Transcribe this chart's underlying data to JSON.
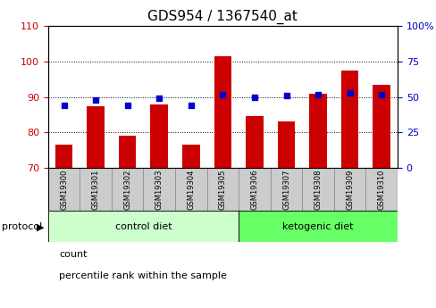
{
  "title": "GDS954 / 1367540_at",
  "samples": [
    "GSM19300",
    "GSM19301",
    "GSM19302",
    "GSM19303",
    "GSM19304",
    "GSM19305",
    "GSM19306",
    "GSM19307",
    "GSM19308",
    "GSM19309",
    "GSM19310"
  ],
  "counts": [
    76.5,
    87.5,
    79.0,
    88.0,
    76.5,
    101.5,
    84.5,
    83.0,
    91.0,
    97.5,
    93.5
  ],
  "percentile_ranks": [
    44,
    48,
    44,
    49,
    44,
    52,
    50,
    51,
    52,
    53,
    52
  ],
  "ylim_left": [
    70,
    110
  ],
  "ylim_right": [
    0,
    100
  ],
  "yticks_left": [
    70,
    80,
    90,
    100,
    110
  ],
  "yticks_right": [
    0,
    25,
    50,
    75,
    100
  ],
  "bar_color": "#cc0000",
  "dot_color": "#0000cc",
  "grid_color": "#000000",
  "protocol_groups": [
    {
      "label": "control diet",
      "indices": [
        0,
        1,
        2,
        3,
        4,
        5
      ],
      "color": "#ccffcc"
    },
    {
      "label": "ketogenic diet",
      "indices": [
        6,
        7,
        8,
        9,
        10
      ],
      "color": "#66ff66"
    }
  ],
  "protocol_label": "protocol",
  "legend_count_label": "count",
  "legend_percentile_label": "percentile rank within the sample",
  "bg_color": "#ffffff",
  "tick_label_color_left": "#cc0000",
  "tick_label_color_right": "#0000cc",
  "title_fontsize": 11,
  "tick_fontsize": 8,
  "bar_width": 0.55,
  "dot_size": 25,
  "sample_bg_color": "#cccccc"
}
